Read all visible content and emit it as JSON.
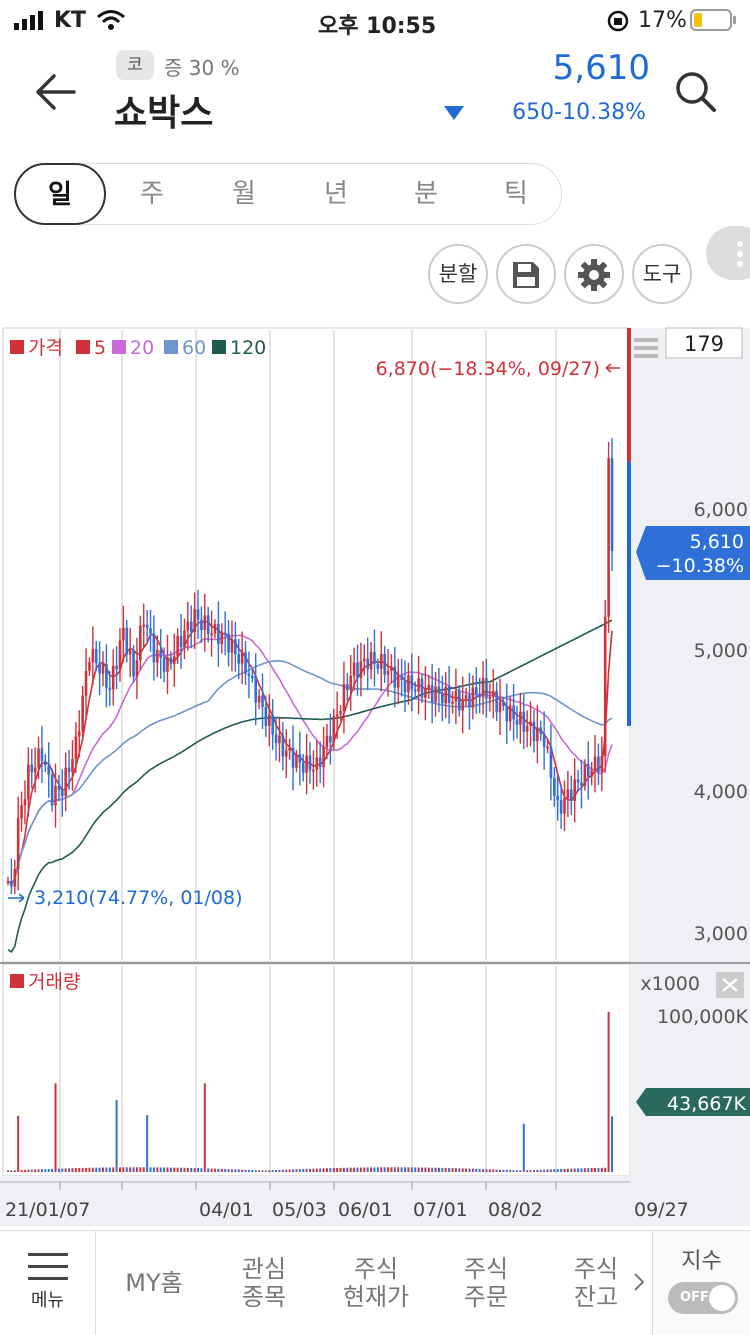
{
  "status_bar": {
    "carrier": "KT",
    "time": "오후 10:55",
    "battery": "17%"
  },
  "header": {
    "market_badge": "코",
    "margin": "증 30 %",
    "stock_name": "쇼박스",
    "price": "5,610",
    "change": "650-10.38%",
    "colors": {
      "down": "#1e6bd6",
      "up": "#d0323a"
    }
  },
  "period_tabs": [
    "일",
    "주",
    "월",
    "년",
    "분",
    "틱"
  ],
  "tools": {
    "split": "분할",
    "tool": "도구",
    "icons": [
      "save-icon",
      "gear-icon"
    ]
  },
  "chart_data": {
    "type": "candlestick",
    "legend": [
      {
        "name": "가격",
        "color": "#d0323a"
      },
      {
        "name": "5",
        "color": "#d0323a"
      },
      {
        "name": "20",
        "color": "#c86ad8"
      },
      {
        "name": "60",
        "color": "#6e95cc"
      },
      {
        "name": "120",
        "color": "#1f5b4f"
      }
    ],
    "bar_count_label": "179",
    "y_ticks": [
      "6,000",
      "5,000",
      "4,000",
      "3,000"
    ],
    "ylim": [
      2900,
      7400
    ],
    "x_ticks": [
      "21/01/07",
      "04/01",
      "05/03",
      "06/01",
      "07/01",
      "08/02",
      "09/27"
    ],
    "high_marker": "6,870(−18.34%, 09/27)",
    "low_marker": "3,210(74.77%, 01/08)",
    "current_label": {
      "price": "5,610",
      "pct": "−10.38%"
    },
    "volume_title": "거래량",
    "volume_unit": "x1000",
    "volume_tick": "100,000K",
    "volume_current": "43,667K",
    "volume_max_k": 140000
  },
  "bottom_nav": {
    "menu": "메뉴",
    "items": [
      "MY홈",
      "관심\n종목",
      "주식\n현재가",
      "주식\n주문",
      "주식\n잔고"
    ],
    "index": "지수",
    "toggle": "OFF"
  }
}
